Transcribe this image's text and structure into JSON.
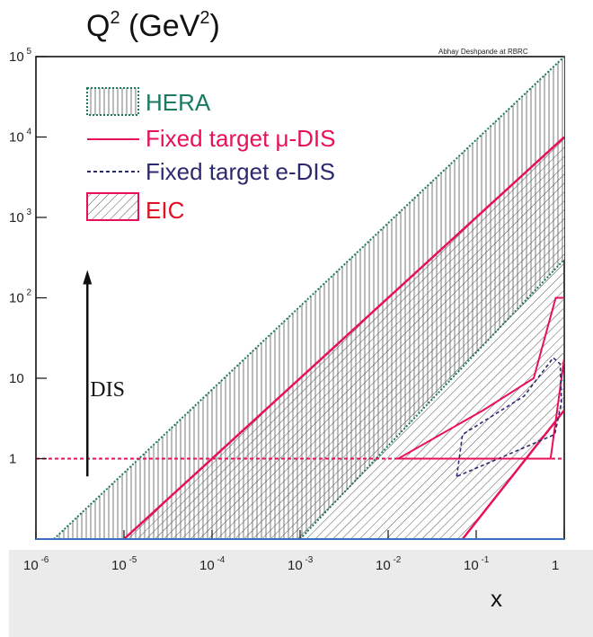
{
  "chart_data": {
    "type": "area",
    "title": "Q",
    "title_sup": "2",
    "title_unit_open": " (GeV",
    "title_unit_sup": "2",
    "title_unit_close": ")",
    "credit": "Abhay Deshpande at RBRC",
    "xlabel": "x",
    "x_scale": "log",
    "y_scale": "log",
    "xlim": [
      1e-06,
      1
    ],
    "ylim": [
      0.1,
      100000
    ],
    "x_ticks": [
      {
        "base": "10",
        "exp": "-6",
        "value": 1e-06
      },
      {
        "base": "10",
        "exp": "-5",
        "value": 1e-05
      },
      {
        "base": "10",
        "exp": "-4",
        "value": 0.0001
      },
      {
        "base": "10",
        "exp": "-3",
        "value": 0.001
      },
      {
        "base": "10",
        "exp": "-2",
        "value": 0.01
      },
      {
        "base": "10",
        "exp": "-1",
        "value": 0.1
      },
      {
        "base": "1",
        "exp": "",
        "value": 1
      }
    ],
    "y_ticks": [
      {
        "base": "1",
        "exp": "",
        "value": 1
      },
      {
        "base": "10",
        "exp": "",
        "value": 10
      },
      {
        "base": "10",
        "exp": "2",
        "value": 100
      },
      {
        "base": "10",
        "exp": "3",
        "value": 1000
      },
      {
        "base": "10",
        "exp": "4",
        "value": 10000
      },
      {
        "base": "10",
        "exp": "5",
        "value": 100000
      }
    ],
    "legend_placement": "top-left",
    "legend": [
      {
        "label": "HERA",
        "color": "#1a7a60",
        "style": "vertical-hatch-box"
      },
      {
        "label": "Fixed target μ-DIS",
        "color": "#e8105a",
        "style": "solid-line"
      },
      {
        "label": "Fixed target e-DIS",
        "color": "#2c2a6e",
        "style": "dashed-line"
      },
      {
        "label": "EIC",
        "color": "#e8105a",
        "style": "diagonal-hatch-box"
      }
    ],
    "annotation": {
      "label": "DIS",
      "arrow": "up",
      "x": 1.5e-06,
      "y_from": 1.3,
      "y_to": 200
    },
    "regions": {
      "hera": {
        "color": "#1a7a60",
        "hatch": "vertical",
        "upper_x": [
          1.6e-06,
          1
        ],
        "upper_y": [
          0.1,
          100000
        ],
        "lower_x": [
          0.001,
          1
        ],
        "lower_y": [
          0.1,
          300
        ]
      },
      "eic": {
        "color": "#e8105a",
        "hatch": "diagonal",
        "upper_x": [
          1e-05,
          1
        ],
        "upper_y": [
          0.1,
          10000
        ],
        "lower_x": [
          0.07,
          1
        ],
        "lower_y": [
          0.1,
          4
        ]
      },
      "mu_dis": {
        "color": "#e8105a",
        "points": [
          [
            0.013,
            1
          ],
          [
            0.12,
            4
          ],
          [
            0.45,
            10
          ],
          [
            0.8,
            100
          ],
          [
            1,
            100
          ],
          [
            1,
            18
          ],
          [
            0.7,
            1
          ],
          [
            0.013,
            1
          ]
        ]
      },
      "e_dis": {
        "color": "#2c2a6e",
        "points": [
          [
            0.06,
            0.6
          ],
          [
            0.07,
            2
          ],
          [
            0.35,
            6
          ],
          [
            0.75,
            18
          ],
          [
            0.9,
            15
          ],
          [
            0.93,
            5
          ],
          [
            0.78,
            2
          ],
          [
            0.06,
            0.6
          ]
        ]
      },
      "dis_cut": {
        "color": "#e8105a",
        "y": 1
      }
    }
  }
}
